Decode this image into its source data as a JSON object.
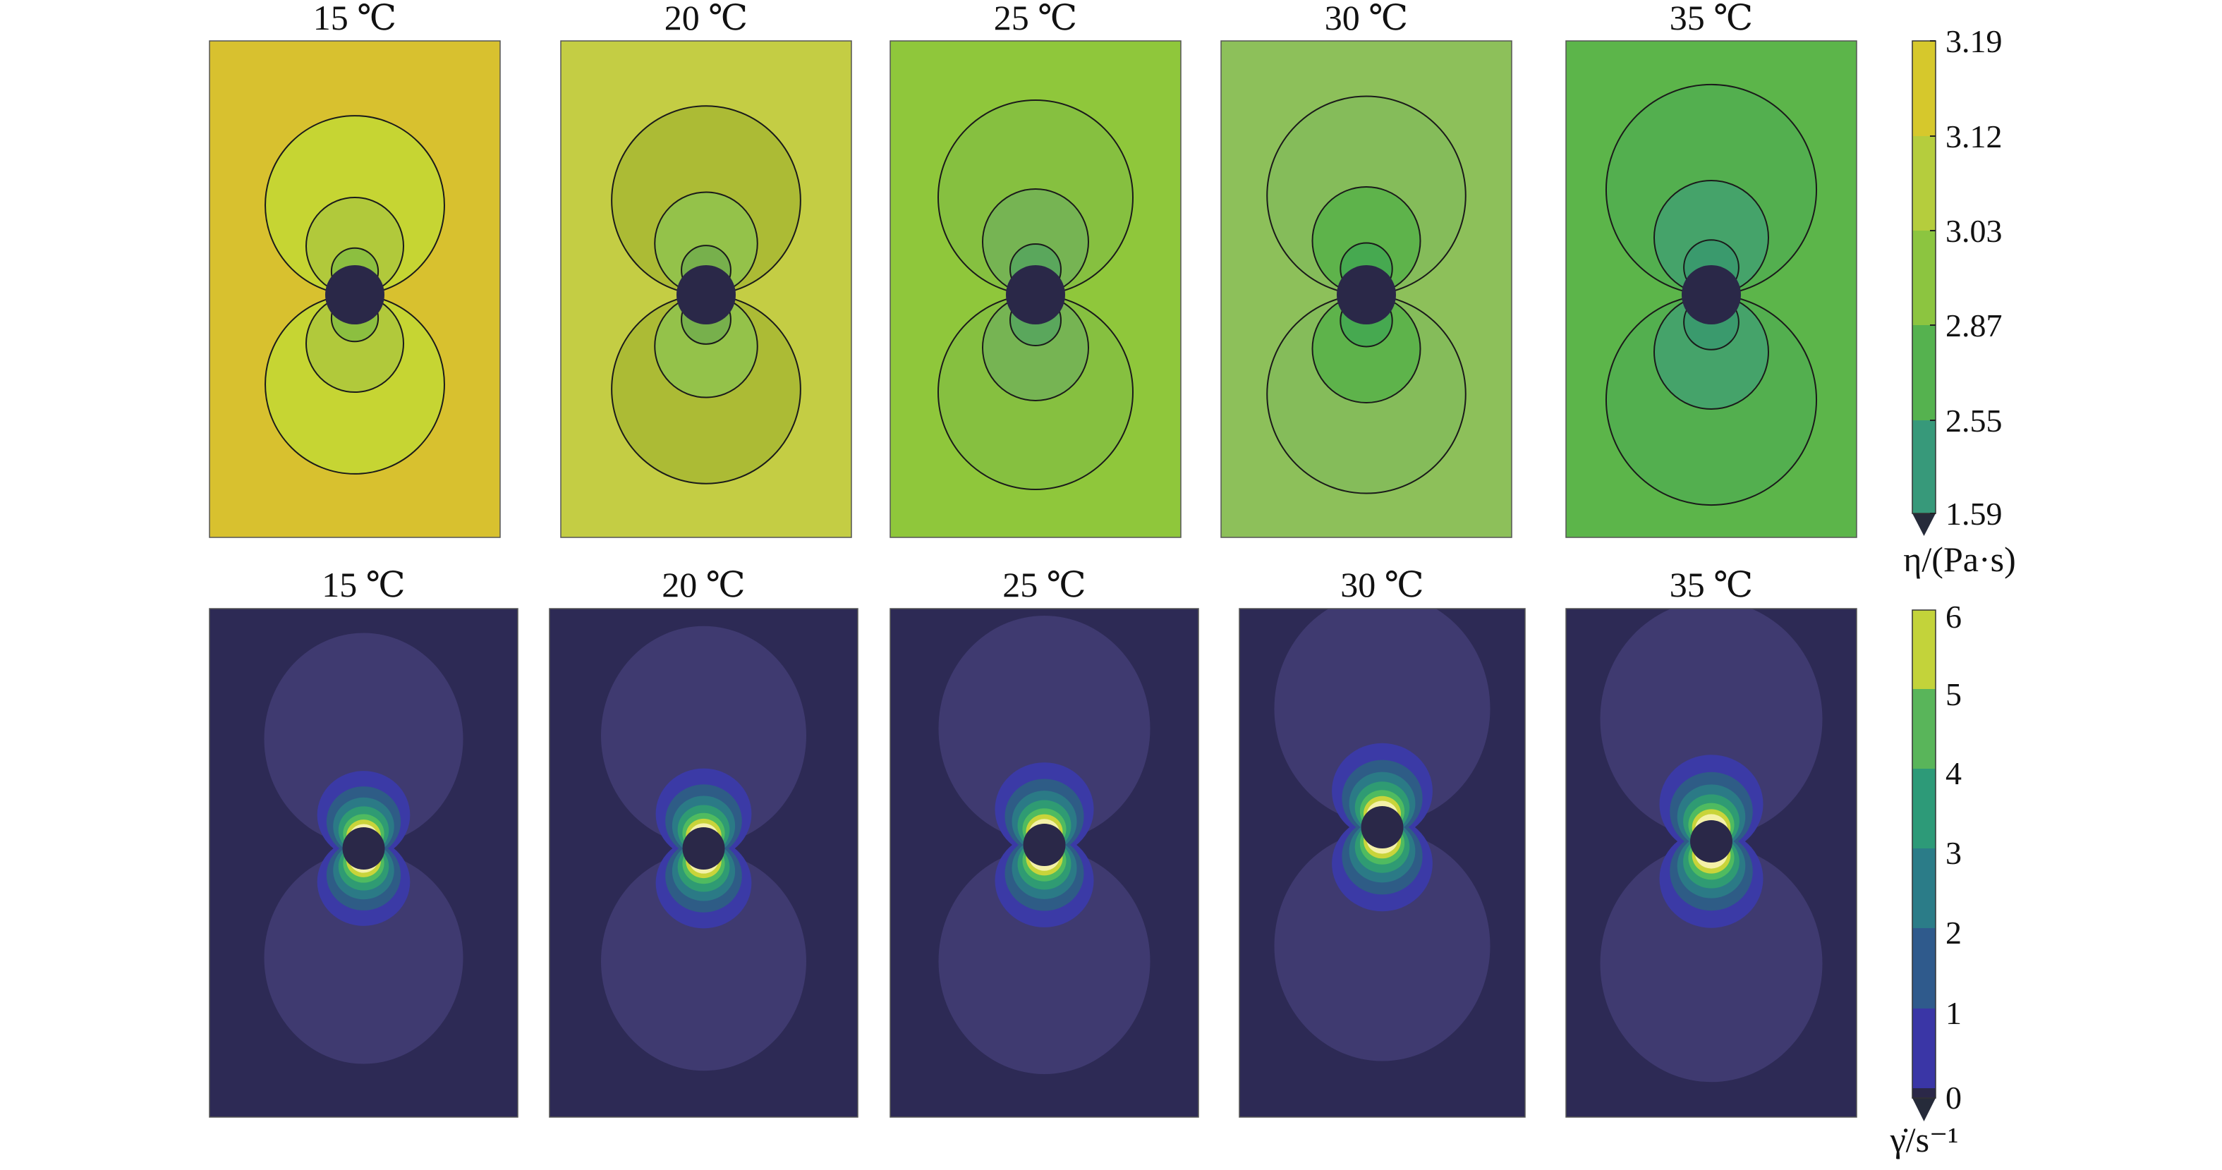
{
  "figure": {
    "top_row": {
      "panels": [
        {
          "title": "15 ℃",
          "background": "#d8c12f",
          "outer_lobe": "#c6d533",
          "mid_lobe": "#b1c93b",
          "inner_lobe": "#8cbf40",
          "core_lobe": "#53a865"
        },
        {
          "title": "20 ℃",
          "background": "#c4cd44",
          "outer_lobe": "#acbb35",
          "mid_lobe": "#94c24a",
          "inner_lobe": "#77b04c",
          "core_lobe": "#4a9c66"
        },
        {
          "title": "25 ℃",
          "background": "#8fc73b",
          "outer_lobe": "#86c040",
          "mid_lobe": "#76b453",
          "inner_lobe": "#5aa75c",
          "core_lobe": "#3e9670"
        },
        {
          "title": "30 ℃",
          "background": "#8dc05a",
          "outer_lobe": "#85bc5a",
          "mid_lobe": "#5eb34b",
          "inner_lobe": "#46a950",
          "core_lobe": "#32906b"
        },
        {
          "title": "35 ℃",
          "background": "#5cb54a",
          "outer_lobe": "#53af4f",
          "mid_lobe": "#45a36a",
          "inner_lobe": "#3a9a6d",
          "core_lobe": "#2f8c73"
        }
      ],
      "colorbar": {
        "ticks": [
          "3.19",
          "3.12",
          "3.03",
          "2.87",
          "2.55",
          "1.59"
        ],
        "colors": [
          "#d6c82c",
          "#b5cd3d",
          "#8cc540",
          "#55b24f",
          "#37997a"
        ],
        "unit_label": "η/(Pa·s)"
      }
    },
    "bottom_row": {
      "panels": [
        {
          "title": "15 ℃",
          "scale": 0.94
        },
        {
          "title": "20 ℃",
          "scale": 0.97
        },
        {
          "title": "25 ℃",
          "scale": 1.0
        },
        {
          "title": "30 ℃",
          "scale": 1.02
        },
        {
          "title": "35 ℃",
          "scale": 1.05
        }
      ],
      "background": "#2d2a55",
      "outer_lobe": "#3f3a70",
      "band_colors": [
        "#3b3aa6",
        "#2e5c86",
        "#2b7a86",
        "#2f9b73",
        "#4fbb60",
        "#c9d43a",
        "#f4f1a8"
      ],
      "colorbar": {
        "ticks": [
          "6",
          "5",
          "4",
          "3",
          "2",
          "1",
          "0"
        ],
        "colors": [
          "#c3d33a",
          "#59b55a",
          "#2d9a78",
          "#2b7c88",
          "#2f5a8c",
          "#3a36a6",
          "#2b2848"
        ],
        "unit_label": "γ̇/s⁻¹"
      }
    },
    "hole_color": "#2a2848"
  }
}
